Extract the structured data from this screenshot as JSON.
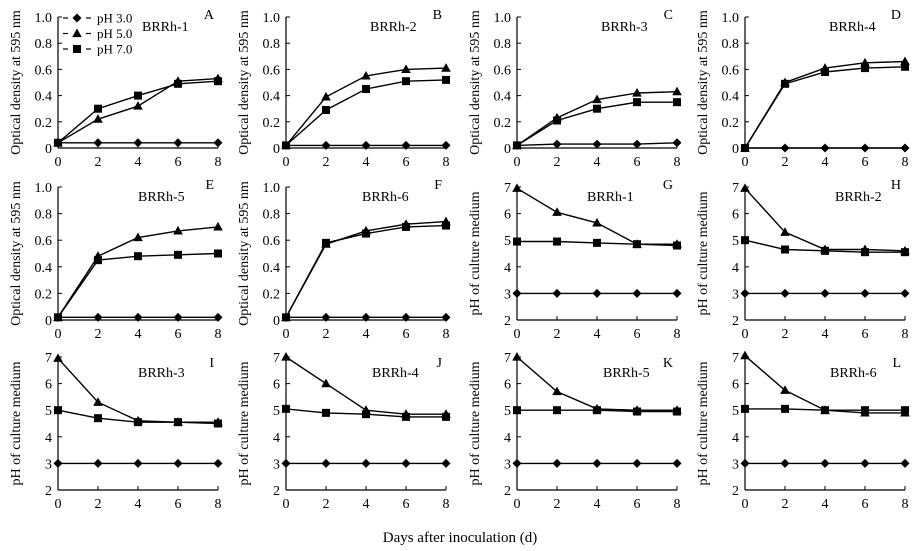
{
  "figure": {
    "xlabel": "Days after inoculation (d)"
  },
  "legend": {
    "entries": [
      {
        "label": "pH 3.0",
        "marker": "diamond"
      },
      {
        "label": "pH 5.0",
        "marker": "triangle"
      },
      {
        "label": "pH 7.0",
        "marker": "square"
      }
    ]
  },
  "colors": {
    "line": "#000000",
    "background": "#ffffff"
  },
  "chart_data": [
    {
      "panel": "A",
      "title": "BRRh-1",
      "type": "line",
      "ylabel": "Optical density at 595 nm",
      "xlim": [
        0,
        8
      ],
      "ylim": [
        0,
        1.0
      ],
      "xticks": [
        "0",
        "2",
        "4",
        "6",
        "8"
      ],
      "yticks": [
        "0",
        "0.2",
        "0.4",
        "0.6",
        "0.8",
        "1.0"
      ],
      "x": [
        0,
        2,
        4,
        6,
        8
      ],
      "series": [
        {
          "name": "pH 3.0",
          "marker": "diamond",
          "values": [
            0.04,
            0.04,
            0.04,
            0.04,
            0.04
          ]
        },
        {
          "name": "pH 5.0",
          "marker": "triangle",
          "values": [
            0.04,
            0.22,
            0.32,
            0.51,
            0.53
          ]
        },
        {
          "name": "pH 7.0",
          "marker": "square",
          "values": [
            0.04,
            0.3,
            0.4,
            0.49,
            0.51
          ]
        }
      ]
    },
    {
      "panel": "B",
      "title": "BRRh-2",
      "type": "line",
      "ylabel": "Optical density at 595 nm",
      "xlim": [
        0,
        8
      ],
      "ylim": [
        0,
        1.0
      ],
      "xticks": [
        "0",
        "2",
        "4",
        "6",
        "8"
      ],
      "yticks": [
        "0",
        "0.2",
        "0.4",
        "0.6",
        "0.8",
        "1.0"
      ],
      "x": [
        0,
        2,
        4,
        6,
        8
      ],
      "series": [
        {
          "name": "pH 3.0",
          "marker": "diamond",
          "values": [
            0.02,
            0.02,
            0.02,
            0.02,
            0.02
          ]
        },
        {
          "name": "pH 5.0",
          "marker": "triangle",
          "values": [
            0.02,
            0.39,
            0.55,
            0.6,
            0.61
          ]
        },
        {
          "name": "pH 7.0",
          "marker": "square",
          "values": [
            0.02,
            0.29,
            0.45,
            0.51,
            0.52
          ]
        }
      ]
    },
    {
      "panel": "C",
      "title": "BRRh-3",
      "type": "line",
      "ylabel": "Optical density at 595 nm",
      "xlim": [
        0,
        8
      ],
      "ylim": [
        0,
        1.0
      ],
      "xticks": [
        "0",
        "2",
        "4",
        "6",
        "8"
      ],
      "yticks": [
        "0",
        "0.2",
        "0.4",
        "0.6",
        "0.8",
        "1.0"
      ],
      "x": [
        0,
        2,
        4,
        6,
        8
      ],
      "series": [
        {
          "name": "pH 3.0",
          "marker": "diamond",
          "values": [
            0.02,
            0.03,
            0.03,
            0.03,
            0.04
          ]
        },
        {
          "name": "pH 5.0",
          "marker": "triangle",
          "values": [
            0.02,
            0.23,
            0.37,
            0.42,
            0.43
          ]
        },
        {
          "name": "pH 7.0",
          "marker": "square",
          "values": [
            0.02,
            0.21,
            0.3,
            0.35,
            0.35
          ]
        }
      ]
    },
    {
      "panel": "D",
      "title": "BRRh-4",
      "type": "line",
      "ylabel": "Optical density at 595 nm",
      "xlim": [
        0,
        8
      ],
      "ylim": [
        0,
        1.0
      ],
      "xticks": [
        "0",
        "2",
        "4",
        "6",
        "8"
      ],
      "yticks": [
        "0",
        "0.2",
        "0.4",
        "0.6",
        "0.8",
        "1.0"
      ],
      "x": [
        0,
        2,
        4,
        6,
        8
      ],
      "series": [
        {
          "name": "pH 3.0",
          "marker": "diamond",
          "values": [
            0.0,
            0.0,
            0.0,
            0.0,
            0.0
          ]
        },
        {
          "name": "pH 5.0",
          "marker": "triangle",
          "values": [
            0.0,
            0.5,
            0.61,
            0.65,
            0.66
          ]
        },
        {
          "name": "pH 7.0",
          "marker": "square",
          "values": [
            0.0,
            0.49,
            0.58,
            0.61,
            0.62
          ]
        }
      ]
    },
    {
      "panel": "E",
      "title": "BRRh-5",
      "type": "line",
      "ylabel": "Optical density at 595 nm",
      "xlim": [
        0,
        8
      ],
      "ylim": [
        0,
        1.0
      ],
      "xticks": [
        "0",
        "2",
        "4",
        "6",
        "8"
      ],
      "yticks": [
        "0",
        "0.2",
        "0.4",
        "0.6",
        "0.8",
        "1.0"
      ],
      "x": [
        0,
        2,
        4,
        6,
        8
      ],
      "series": [
        {
          "name": "pH 3.0",
          "marker": "diamond",
          "values": [
            0.02,
            0.02,
            0.02,
            0.02,
            0.02
          ]
        },
        {
          "name": "pH 5.0",
          "marker": "triangle",
          "values": [
            0.02,
            0.48,
            0.62,
            0.67,
            0.7
          ]
        },
        {
          "name": "pH 7.0",
          "marker": "square",
          "values": [
            0.02,
            0.45,
            0.48,
            0.49,
            0.5
          ]
        }
      ]
    },
    {
      "panel": "F",
      "title": "BRRh-6",
      "type": "line",
      "ylabel": "Optical density at 595 nm",
      "xlim": [
        0,
        8
      ],
      "ylim": [
        0,
        1.0
      ],
      "xticks": [
        "0",
        "2",
        "4",
        "6",
        "8"
      ],
      "yticks": [
        "0",
        "0.2",
        "0.4",
        "0.6",
        "0.8",
        "1.0"
      ],
      "x": [
        0,
        2,
        4,
        6,
        8
      ],
      "series": [
        {
          "name": "pH 3.0",
          "marker": "diamond",
          "values": [
            0.02,
            0.02,
            0.02,
            0.02,
            0.02
          ]
        },
        {
          "name": "pH 5.0",
          "marker": "triangle",
          "values": [
            0.02,
            0.57,
            0.67,
            0.72,
            0.74
          ]
        },
        {
          "name": "pH 7.0",
          "marker": "square",
          "values": [
            0.02,
            0.58,
            0.65,
            0.7,
            0.71
          ]
        }
      ]
    },
    {
      "panel": "G",
      "title": "BRRh-1",
      "type": "line",
      "ylabel": "pH of culture medium",
      "xlim": [
        0,
        8
      ],
      "ylim": [
        2,
        7
      ],
      "xticks": [
        "0",
        "2",
        "4",
        "6",
        "8"
      ],
      "yticks": [
        "2",
        "3",
        "4",
        "5",
        "6",
        "7"
      ],
      "x": [
        0,
        2,
        4,
        6,
        8
      ],
      "series": [
        {
          "name": "pH 3.0",
          "marker": "diamond",
          "values": [
            3.0,
            3.0,
            3.0,
            3.0,
            3.0
          ]
        },
        {
          "name": "pH 5.0",
          "marker": "triangle",
          "values": [
            6.95,
            6.05,
            5.65,
            4.85,
            4.85
          ]
        },
        {
          "name": "pH 7.0",
          "marker": "square",
          "values": [
            4.95,
            4.95,
            4.9,
            4.85,
            4.8
          ]
        }
      ]
    },
    {
      "panel": "H",
      "title": "BRRh-2",
      "type": "line",
      "ylabel": "pH of culture medium",
      "xlim": [
        0,
        8
      ],
      "ylim": [
        2,
        7
      ],
      "xticks": [
        "0",
        "2",
        "4",
        "6",
        "8"
      ],
      "yticks": [
        "2",
        "3",
        "4",
        "5",
        "6",
        "7"
      ],
      "x": [
        0,
        2,
        4,
        6,
        8
      ],
      "series": [
        {
          "name": "pH 3.0",
          "marker": "diamond",
          "values": [
            3.0,
            3.0,
            3.0,
            3.0,
            3.0
          ]
        },
        {
          "name": "pH 5.0",
          "marker": "triangle",
          "values": [
            6.95,
            5.3,
            4.65,
            4.65,
            4.6
          ]
        },
        {
          "name": "pH 7.0",
          "marker": "square",
          "values": [
            5.0,
            4.65,
            4.6,
            4.55,
            4.55
          ]
        }
      ]
    },
    {
      "panel": "I",
      "title": "BRRh-3",
      "type": "line",
      "ylabel": "pH of culture medium",
      "xlim": [
        0,
        8
      ],
      "ylim": [
        2,
        7
      ],
      "xticks": [
        "0",
        "2",
        "4",
        "6",
        "8"
      ],
      "yticks": [
        "2",
        "3",
        "4",
        "5",
        "6",
        "7"
      ],
      "x": [
        0,
        2,
        4,
        6,
        8
      ],
      "series": [
        {
          "name": "pH 3.0",
          "marker": "diamond",
          "values": [
            3.0,
            3.0,
            3.0,
            3.0,
            3.0
          ]
        },
        {
          "name": "pH 5.0",
          "marker": "triangle",
          "values": [
            6.95,
            5.3,
            4.6,
            4.55,
            4.55
          ]
        },
        {
          "name": "pH 7.0",
          "marker": "square",
          "values": [
            5.0,
            4.7,
            4.55,
            4.55,
            4.5
          ]
        }
      ]
    },
    {
      "panel": "J",
      "title": "BRRh-4",
      "type": "line",
      "ylabel": "pH of culture medium",
      "xlim": [
        0,
        8
      ],
      "ylim": [
        2,
        7
      ],
      "xticks": [
        "0",
        "2",
        "4",
        "6",
        "8"
      ],
      "yticks": [
        "2",
        "3",
        "4",
        "5",
        "6",
        "7"
      ],
      "x": [
        0,
        2,
        4,
        6,
        8
      ],
      "series": [
        {
          "name": "pH 3.0",
          "marker": "diamond",
          "values": [
            3.0,
            3.0,
            3.0,
            3.0,
            3.0
          ]
        },
        {
          "name": "pH 5.0",
          "marker": "triangle",
          "values": [
            7.0,
            6.0,
            5.0,
            4.85,
            4.85
          ]
        },
        {
          "name": "pH 7.0",
          "marker": "square",
          "values": [
            5.05,
            4.9,
            4.85,
            4.75,
            4.75
          ]
        }
      ]
    },
    {
      "panel": "K",
      "title": "BRRh-5",
      "type": "line",
      "ylabel": "pH of culture medium",
      "xlim": [
        0,
        8
      ],
      "ylim": [
        2,
        7
      ],
      "xticks": [
        "0",
        "2",
        "4",
        "6",
        "8"
      ],
      "yticks": [
        "2",
        "3",
        "4",
        "5",
        "6",
        "7"
      ],
      "x": [
        0,
        2,
        4,
        6,
        8
      ],
      "series": [
        {
          "name": "pH 3.0",
          "marker": "diamond",
          "values": [
            3.0,
            3.0,
            3.0,
            3.0,
            3.0
          ]
        },
        {
          "name": "pH 5.0",
          "marker": "triangle",
          "values": [
            7.0,
            5.7,
            5.05,
            5.0,
            5.0
          ]
        },
        {
          "name": "pH 7.0",
          "marker": "square",
          "values": [
            5.0,
            5.0,
            5.0,
            4.95,
            4.95
          ]
        }
      ]
    },
    {
      "panel": "L",
      "title": "BRRh-6",
      "type": "line",
      "ylabel": "pH of culture medium",
      "xlim": [
        0,
        8
      ],
      "ylim": [
        2,
        7
      ],
      "xticks": [
        "0",
        "2",
        "4",
        "6",
        "8"
      ],
      "yticks": [
        "2",
        "3",
        "4",
        "5",
        "6",
        "7"
      ],
      "x": [
        0,
        2,
        4,
        6,
        8
      ],
      "series": [
        {
          "name": "pH 3.0",
          "marker": "diamond",
          "values": [
            3.0,
            3.0,
            3.0,
            3.0,
            3.0
          ]
        },
        {
          "name": "pH 5.0",
          "marker": "triangle",
          "values": [
            7.05,
            5.75,
            5.0,
            4.9,
            4.9
          ]
        },
        {
          "name": "pH 7.0",
          "marker": "square",
          "values": [
            5.05,
            5.05,
            5.0,
            5.0,
            5.0
          ]
        }
      ]
    }
  ]
}
